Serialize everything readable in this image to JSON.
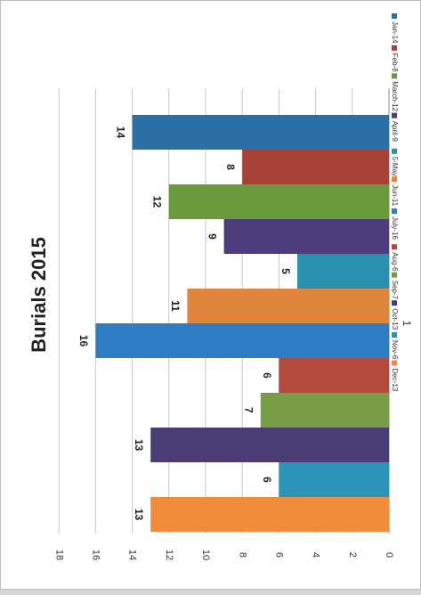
{
  "chart_data": {
    "type": "bar",
    "title": "Burials 2015",
    "categories": [
      "1"
    ],
    "series": [
      {
        "name": "Jan-14",
        "value": 14,
        "color": "#2a6fa6"
      },
      {
        "name": "Feb-8",
        "value": 8,
        "color": "#a84236"
      },
      {
        "name": "March-12",
        "value": 12,
        "color": "#6a9a3b"
      },
      {
        "name": "April-9",
        "value": 9,
        "color": "#4e3d7c"
      },
      {
        "name": "5-May",
        "value": 5,
        "color": "#2b8fb0"
      },
      {
        "name": "Jun-11",
        "value": 11,
        "color": "#e0853c"
      },
      {
        "name": "July-16",
        "value": 16,
        "color": "#2f7ec3"
      },
      {
        "name": "Aug-6",
        "value": 6,
        "color": "#b34a3d"
      },
      {
        "name": "Sep-7",
        "value": 7,
        "color": "#779d45"
      },
      {
        "name": "Oct-13",
        "value": 13,
        "color": "#4a3d75"
      },
      {
        "name": "Nov-6",
        "value": 6,
        "color": "#2b94b8"
      },
      {
        "name": "Dec-13",
        "value": 13,
        "color": "#f08c3a"
      }
    ],
    "ylim": [
      0,
      18
    ],
    "yticks": [
      "0",
      "2",
      "4",
      "6",
      "8",
      "10",
      "12",
      "14",
      "16",
      "18"
    ],
    "grid": true,
    "legend_position": "right",
    "orientation": "rotated 90 degrees clockwise"
  }
}
